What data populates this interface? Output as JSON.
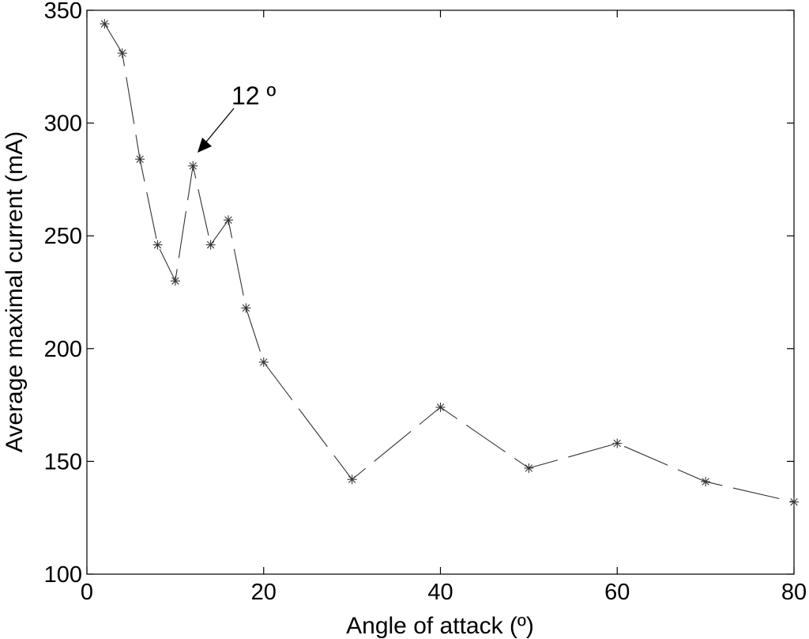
{
  "chart_data": {
    "type": "line",
    "title": "",
    "xlabel": "Angle of attack (º)",
    "ylabel": "Average maximal current (mA)",
    "xlim": [
      0,
      80
    ],
    "ylim": [
      100,
      350
    ],
    "xticks": [
      "0",
      "20",
      "40",
      "60",
      "80"
    ],
    "yticks": [
      "100",
      "150",
      "200",
      "250",
      "300",
      "350"
    ],
    "grid": false,
    "series": [
      {
        "name": "",
        "line_style": "dashed",
        "marker": "asterisk",
        "color": "#333333",
        "x": [
          2,
          4,
          6,
          8,
          10,
          12,
          14,
          16,
          18,
          20,
          30,
          40,
          50,
          60,
          70,
          80
        ],
        "y": [
          344,
          331,
          284,
          246,
          230,
          281,
          246,
          257,
          218,
          194,
          142,
          174,
          147,
          158,
          141,
          132
        ]
      }
    ],
    "annotations": [
      {
        "text": "12 º",
        "x": 12,
        "y": 281
      }
    ]
  }
}
